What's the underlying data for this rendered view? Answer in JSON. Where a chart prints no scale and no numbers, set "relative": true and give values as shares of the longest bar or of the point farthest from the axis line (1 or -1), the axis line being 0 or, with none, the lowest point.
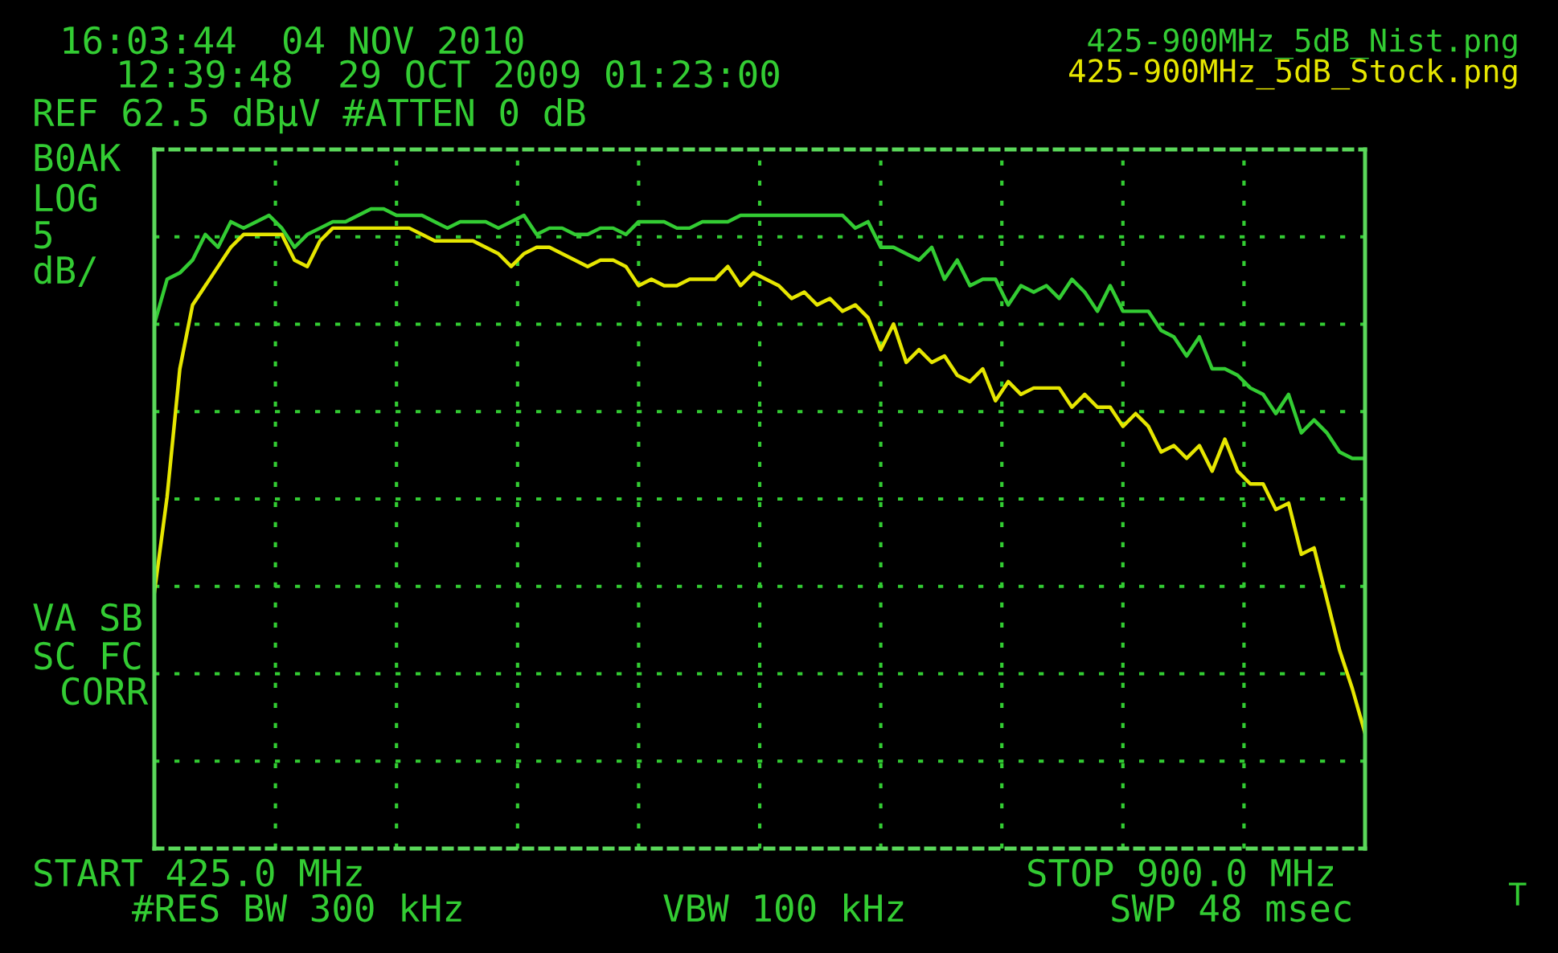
{
  "chart_data": {
    "type": "line",
    "relative": true,
    "grid": true,
    "marker": "none",
    "line_style": "solid",
    "categories": [
      null,
      null,
      null,
      null,
      null,
      null,
      null,
      null,
      null,
      null,
      null,
      null,
      null,
      null,
      null,
      null,
      null,
      null,
      null,
      null,
      null,
      null,
      null,
      null,
      null,
      null,
      null,
      null,
      null,
      null,
      null,
      null,
      null,
      null,
      null,
      null,
      null,
      null,
      null,
      null,
      null,
      null,
      null,
      null,
      null,
      null,
      null,
      null,
      null,
      null,
      null,
      null,
      null,
      null,
      null,
      null,
      null,
      null,
      null,
      null,
      null,
      null,
      null,
      null,
      null,
      null,
      null,
      null,
      null,
      null,
      null,
      null,
      null,
      null,
      null,
      null,
      null,
      null,
      null,
      null,
      null,
      null,
      null,
      null,
      null,
      null,
      null,
      null,
      null,
      null,
      null,
      null,
      null,
      null,
      null,
      null
    ],
    "annotations": [
      "16:03:44  04 NOV 2010",
      "12:39:48  29 OCT 2009 01:23:00",
      "REF 62.5 dBµV #ATTEN 0 dB",
      "B0AK",
      "LOG",
      "5",
      "dB/",
      "VA SB",
      "SC FC",
      "CORR",
      "START 425.0 MHz",
      "STOP 900.0 MHz",
      "#RES BW 300 kHz",
      "VBW 100 kHz",
      "SWP 48 msec",
      "T"
    ],
    "series": [
      {
        "name": "425-900MHz_5dB_Nist.png",
        "color": "#33cc33",
        "values": [
          0.82,
          0.89,
          0.9,
          0.92,
          0.96,
          0.94,
          0.98,
          0.97,
          0.98,
          0.99,
          0.97,
          0.94,
          0.96,
          0.97,
          0.98,
          0.98,
          0.99,
          1.0,
          1.0,
          0.99,
          0.99,
          0.99,
          0.98,
          0.97,
          0.98,
          0.98,
          0.98,
          0.97,
          0.98,
          0.99,
          0.96,
          0.97,
          0.97,
          0.96,
          0.96,
          0.97,
          0.97,
          0.96,
          0.98,
          0.98,
          0.98,
          0.97,
          0.97,
          0.98,
          0.98,
          0.98,
          0.99,
          0.99,
          0.99,
          0.99,
          0.99,
          0.99,
          0.99,
          0.99,
          0.99,
          0.97,
          0.98,
          0.94,
          0.94,
          0.93,
          0.92,
          0.94,
          0.89,
          0.92,
          0.88,
          0.89,
          0.89,
          0.85,
          0.88,
          0.87,
          0.88,
          0.86,
          0.89,
          0.87,
          0.84,
          0.88,
          0.84,
          0.84,
          0.84,
          0.81,
          0.8,
          0.77,
          0.8,
          0.75,
          0.75,
          0.74,
          0.72,
          0.71,
          0.68,
          0.71,
          0.65,
          0.67,
          0.65,
          0.62,
          0.61,
          0.61
        ]
      },
      {
        "name": "425-900MHz_5dB_Stock.png",
        "color": "#e6e600",
        "values": [
          0.4,
          0.55,
          0.75,
          0.85,
          0.88,
          0.91,
          0.94,
          0.96,
          0.96,
          0.96,
          0.96,
          0.92,
          0.91,
          0.95,
          0.97,
          0.97,
          0.97,
          0.97,
          0.97,
          0.97,
          0.97,
          0.96,
          0.95,
          0.95,
          0.95,
          0.95,
          0.94,
          0.93,
          0.91,
          0.93,
          0.94,
          0.94,
          0.93,
          0.92,
          0.91,
          0.92,
          0.92,
          0.91,
          0.88,
          0.89,
          0.88,
          0.88,
          0.89,
          0.89,
          0.89,
          0.91,
          0.88,
          0.9,
          0.89,
          0.88,
          0.86,
          0.87,
          0.85,
          0.86,
          0.84,
          0.85,
          0.83,
          0.78,
          0.82,
          0.76,
          0.78,
          0.76,
          0.77,
          0.74,
          0.73,
          0.75,
          0.7,
          0.73,
          0.71,
          0.72,
          0.72,
          0.72,
          0.69,
          0.71,
          0.69,
          0.69,
          0.66,
          0.68,
          0.66,
          0.62,
          0.63,
          0.61,
          0.63,
          0.59,
          0.64,
          0.59,
          0.57,
          0.57,
          0.53,
          0.54,
          0.46,
          0.47,
          0.39,
          0.31,
          0.25,
          0.18
        ]
      }
    ]
  }
}
